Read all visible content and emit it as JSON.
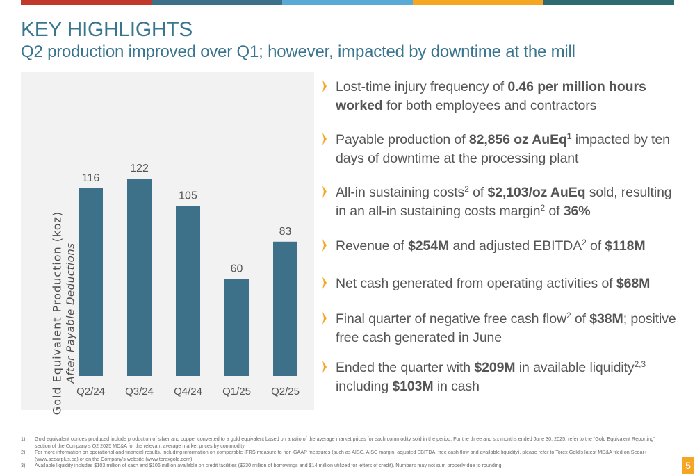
{
  "header": {
    "title": "KEY HIGHLIGHTS",
    "subtitle": "Q2 production improved over Q1; however, impacted by downtime at the mill"
  },
  "accent_colors": [
    "#c0392b",
    "#3d7089",
    "#5aaad8",
    "#f5a623",
    "#2e6b70"
  ],
  "chart_data": {
    "type": "bar",
    "categories": [
      "Q2/24",
      "Q3/24",
      "Q4/24",
      "Q1/25",
      "Q2/25"
    ],
    "values": [
      116,
      122,
      105,
      60,
      83
    ],
    "ylabel": "Gold Equivalent Production (koz)",
    "ylabel_sub": "After Payable Deductions",
    "ylim": [
      0,
      122
    ],
    "bar_color": "#3d7089",
    "grid": false,
    "data_labels": true
  },
  "bullets": [
    {
      "parts": [
        {
          "t": "Lost-time injury frequency of ",
          "b": false
        },
        {
          "t": "0.46 per million hours worked",
          "b": true
        },
        {
          "t": " for both employees and contractors",
          "b": false
        }
      ]
    },
    {
      "parts": [
        {
          "t": "Payable production of ",
          "b": false
        },
        {
          "t": "82,856 oz AuEq",
          "b": true
        },
        {
          "t": "1",
          "b": true,
          "sup": true
        },
        {
          "t": " impacted by ten days of downtime at the processing plant",
          "b": false
        }
      ]
    },
    {
      "parts": [
        {
          "t": "All-in sustaining costs",
          "b": false
        },
        {
          "t": "2",
          "b": false,
          "sup": true
        },
        {
          "t": " of ",
          "b": false
        },
        {
          "t": "$2,103/oz AuEq",
          "b": true
        },
        {
          "t": " sold, resulting in an all-in sustaining costs margin",
          "b": false
        },
        {
          "t": "2",
          "b": false,
          "sup": true
        },
        {
          "t": " of ",
          "b": false
        },
        {
          "t": "36%",
          "b": true
        }
      ]
    },
    {
      "parts": [
        {
          "t": "Revenue of ",
          "b": false
        },
        {
          "t": "$254M",
          "b": true
        },
        {
          "t": " and adjusted EBITDA",
          "b": false
        },
        {
          "t": "2",
          "b": false,
          "sup": true
        },
        {
          "t": " of ",
          "b": false
        },
        {
          "t": "$118M",
          "b": true
        }
      ]
    },
    {
      "parts": [
        {
          "t": "Net cash generated from operating activities of ",
          "b": false
        },
        {
          "t": "$68M",
          "b": true
        }
      ]
    },
    {
      "parts": [
        {
          "t": "Final quarter of negative free cash flow",
          "b": false
        },
        {
          "t": "2",
          "b": false,
          "sup": true
        },
        {
          "t": " of ",
          "b": false
        },
        {
          "t": "$38M",
          "b": true
        },
        {
          "t": "; positive free cash generated in June",
          "b": false
        }
      ]
    },
    {
      "parts": [
        {
          "t": "Ended the quarter with ",
          "b": false
        },
        {
          "t": "$209M",
          "b": true
        },
        {
          "t": " in available liquidity",
          "b": false
        },
        {
          "t": "2,3",
          "b": false,
          "sup": true
        },
        {
          "t": " including ",
          "b": false
        },
        {
          "t": "$103M",
          "b": true
        },
        {
          "t": " in cash",
          "b": false
        }
      ]
    }
  ],
  "footnotes": [
    {
      "num": "1)",
      "text": "Gold equivalent ounces produced include production of silver and copper converted to a gold equivalent based on a ratio of the average market prices for each commodity sold in the period. For the three and six months ended June 30, 2025, refer to the “Gold Equivalent Reporting” section of the Company’s Q2 2025 MD&A for the relevant average market prices by commodity."
    },
    {
      "num": "2)",
      "text": "For more information on operational and financial results, including information on comparable IFRS measure to non-GAAP measures (such as AISC, AISC margin, adjusted EBITDA, free cash flow and available liquidity), please refer to Torex Gold’s latest MD&A filed on Sedar+ (www.sedarplus.ca) or on the Company’s website (www.torexgold.com)."
    },
    {
      "num": "3)",
      "text": "Available liquidity includes $103 million of cash and $106 million available on credit facilities ($230 million of borrowings and $14 million utilized for letters of credit). Numbers may not sum properly due to rounding."
    }
  ],
  "page_number": "5"
}
